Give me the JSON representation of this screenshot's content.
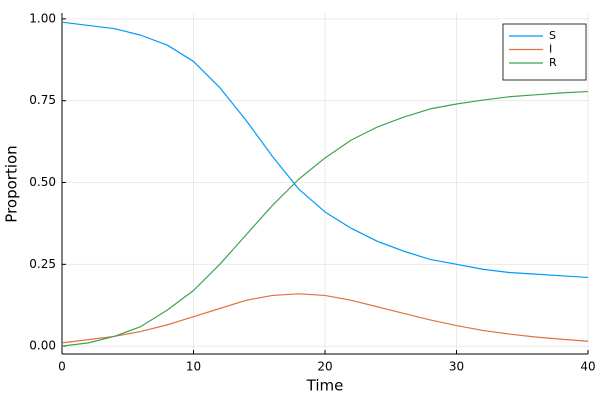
{
  "chart_data": {
    "type": "line",
    "x_label": "Time",
    "y_label": "Proportion",
    "x": [
      0,
      2,
      4,
      6,
      8,
      10,
      12,
      14,
      16,
      18,
      20,
      22,
      24,
      26,
      28,
      30,
      32,
      34,
      36,
      38,
      40
    ],
    "series": [
      {
        "name": "S",
        "color": "#009af9",
        "values": [
          0.99,
          0.98,
          0.97,
          0.95,
          0.92,
          0.87,
          0.79,
          0.69,
          0.58,
          0.48,
          0.41,
          0.36,
          0.32,
          0.29,
          0.265,
          0.25,
          0.235,
          0.225,
          0.22,
          0.215,
          0.21
        ]
      },
      {
        "name": "I",
        "color": "#e26f46",
        "values": [
          0.01,
          0.02,
          0.03,
          0.045,
          0.065,
          0.09,
          0.115,
          0.14,
          0.155,
          0.16,
          0.155,
          0.14,
          0.12,
          0.1,
          0.08,
          0.063,
          0.048,
          0.037,
          0.028,
          0.021,
          0.015
        ]
      },
      {
        "name": "R",
        "color": "#3da44d",
        "values": [
          0.0,
          0.01,
          0.03,
          0.06,
          0.11,
          0.17,
          0.25,
          0.34,
          0.43,
          0.51,
          0.575,
          0.63,
          0.67,
          0.7,
          0.725,
          0.74,
          0.752,
          0.762,
          0.768,
          0.774,
          0.778
        ]
      }
    ],
    "xlim": [
      0,
      40
    ],
    "xticks": [
      0,
      10,
      20,
      30,
      40
    ],
    "ylim": [
      -0.024,
      1.018
    ],
    "yticks": [
      {
        "value": 0,
        "label": "0.00"
      },
      {
        "value": 0.25,
        "label": "0.25"
      },
      {
        "value": 0.5,
        "label": "0.50"
      },
      {
        "value": 0.75,
        "label": "0.75"
      },
      {
        "value": 1,
        "label": "1.00"
      }
    ],
    "grid": true,
    "legend": "top-right"
  }
}
